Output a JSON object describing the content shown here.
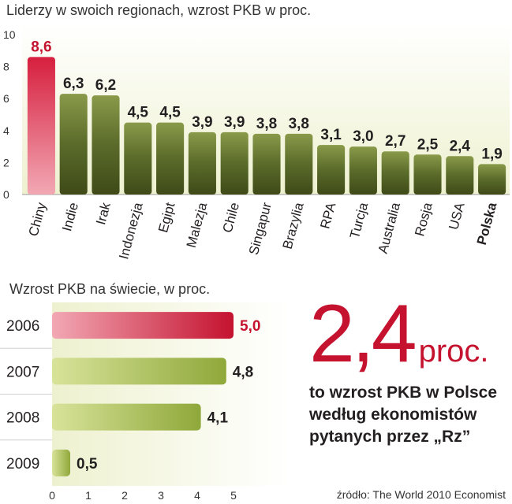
{
  "top": {
    "title": "Liderzy w swoich regionach, wzrost PKB w proc."
  },
  "bottom": {
    "title": "Wzrost PKB na świecie, w proc."
  },
  "callout": {
    "value": "2,4",
    "unit": "proc.",
    "text_line1": "to wzrost PKB w Polsce",
    "text_line2": "według ekonomistów",
    "text_line3": "pytanych przez „Rz”"
  },
  "source": "źródło: The World 2010 Economist",
  "colors": {
    "highlight": "#c4122f",
    "bar_dark": "#5a6b2a",
    "bar_light": "#a9c04a",
    "panel_bg": "#eef1cf"
  },
  "chart_data": [
    {
      "type": "bar",
      "title": "Liderzy w swoich regionach, wzrost PKB w proc.",
      "categories": [
        "Chiny",
        "Indie",
        "Irak",
        "Indonezja",
        "Egipt",
        "Malezja",
        "Chile",
        "Singapur",
        "Brazylia",
        "RPA",
        "Turcja",
        "Australia",
        "Rosja",
        "USA",
        "Polska"
      ],
      "values": [
        8.6,
        6.3,
        6.2,
        4.5,
        4.5,
        3.9,
        3.9,
        3.8,
        3.8,
        3.1,
        3.0,
        2.7,
        2.5,
        2.4,
        1.9
      ],
      "value_labels": [
        "8,6",
        "6,3",
        "6,2",
        "4,5",
        "4,5",
        "3,9",
        "3,9",
        "3,8",
        "3,8",
        "3,1",
        "3,0",
        "2,7",
        "2,5",
        "2,4",
        "1,9"
      ],
      "highlight_index": 0,
      "bold_category_index": 14,
      "ylim": [
        0,
        10
      ],
      "yticks": [
        0,
        2,
        4,
        6,
        8,
        10
      ],
      "orientation": "vertical",
      "grid": false
    },
    {
      "type": "bar",
      "title": "Wzrost PKB na świecie, w proc.",
      "categories": [
        "2006",
        "2007",
        "2008",
        "2009"
      ],
      "values": [
        5.0,
        4.8,
        4.1,
        0.5
      ],
      "value_labels": [
        "5,0",
        "4,8",
        "4,1",
        "0,5"
      ],
      "highlight_index": 0,
      "xlim": [
        0,
        5
      ],
      "xticks": [
        0,
        1,
        2,
        3,
        4,
        5
      ],
      "orientation": "horizontal",
      "grid": false
    }
  ]
}
